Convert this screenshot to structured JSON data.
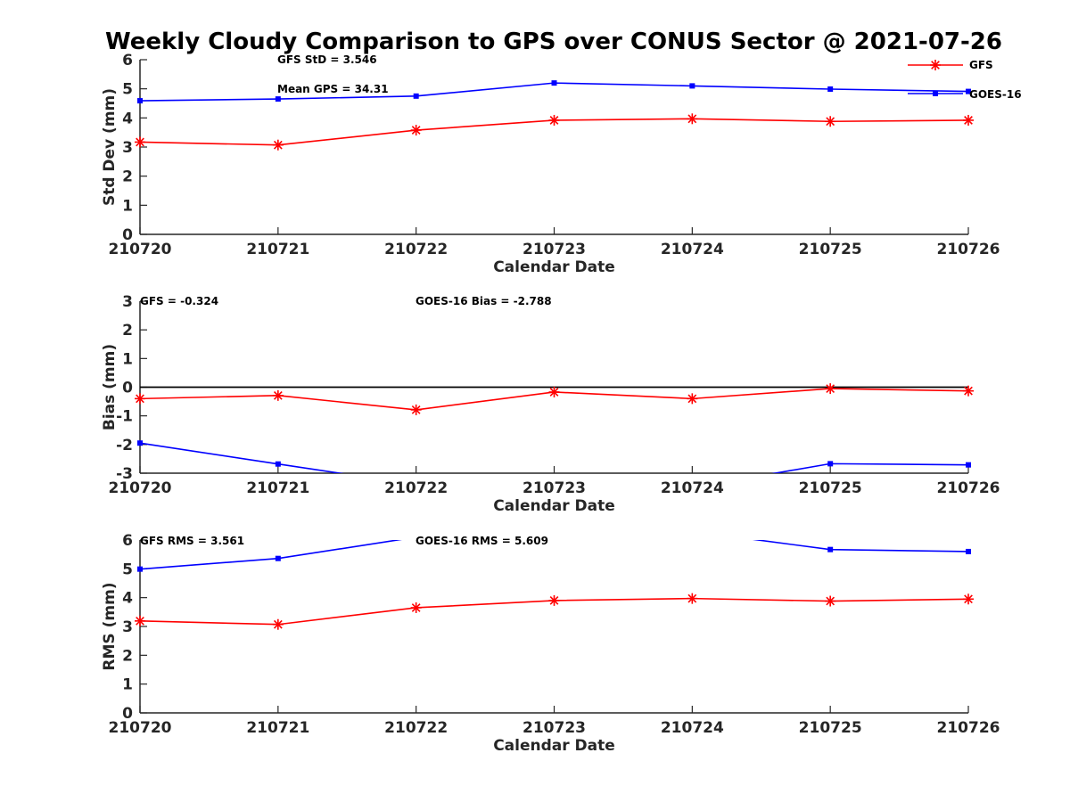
{
  "chart_data": {
    "title": "Weekly Cloudy Comparison to GPS over CONUS Sector @ 2021-07-26",
    "legend": {
      "placement": "top-right",
      "entries": [
        {
          "name": "GFS",
          "color": "#ff0000",
          "marker": "asterisk"
        },
        {
          "name": "GOES-16",
          "color": "#0000ff",
          "marker": "square"
        }
      ]
    },
    "panels": [
      {
        "type": "line",
        "xlabel": "Calendar Date",
        "ylabel": "Std Dev (mm)",
        "categories": [
          "210720",
          "210721",
          "210722",
          "210723",
          "210724",
          "210725",
          "210726"
        ],
        "ylim": [
          0,
          6
        ],
        "yticks": [
          "0",
          "1",
          "2",
          "3",
          "4",
          "5",
          "6"
        ],
        "zero_line": false,
        "annotations": [
          "GFS StD = 3.546",
          "Mean GPS = 34.31"
        ],
        "series": [
          {
            "name": "GFS",
            "color": "#ff0000",
            "values": [
              3.17,
              3.07,
              3.58,
              3.92,
              3.97,
              3.88,
              3.92
            ]
          },
          {
            "name": "GOES-16",
            "color": "#0000ff",
            "values": [
              4.59,
              4.65,
              4.75,
              5.2,
              5.1,
              4.99,
              4.91
            ]
          }
        ]
      },
      {
        "type": "line",
        "xlabel": "Calendar Date",
        "ylabel": "Bias (mm)",
        "categories": [
          "210720",
          "210721",
          "210722",
          "210723",
          "210724",
          "210725",
          "210726"
        ],
        "ylim": [
          -3,
          3
        ],
        "yticks": [
          "-3",
          "-2",
          "-1",
          "0",
          "1",
          "2",
          "3"
        ],
        "zero_line": true,
        "annotations": [
          "GFS = -0.324",
          "GOES-16 Bias  = -2.788"
        ],
        "series": [
          {
            "name": "GFS",
            "color": "#ff0000",
            "values": [
              -0.4,
              -0.29,
              -0.79,
              -0.17,
              -0.4,
              -0.05,
              -0.13
            ]
          },
          {
            "name": "GOES-16",
            "color": "#0000ff",
            "values": [
              -1.95,
              -2.68,
              -3.4,
              -3.6,
              -3.5,
              -2.67,
              -2.71
            ]
          }
        ]
      },
      {
        "type": "line",
        "xlabel": "Calendar Date",
        "ylabel": "RMS (mm)",
        "categories": [
          "210720",
          "210721",
          "210722",
          "210723",
          "210724",
          "210725",
          "210726"
        ],
        "ylim": [
          0,
          6
        ],
        "yticks": [
          "0",
          "1",
          "2",
          "3",
          "4",
          "5",
          "6"
        ],
        "zero_line": false,
        "annotations": [
          "GFS RMS = 3.561",
          "GOES-16 RMS = 5.609"
        ],
        "series": [
          {
            "name": "GFS",
            "color": "#ff0000",
            "values": [
              3.19,
              3.07,
              3.65,
              3.9,
              3.97,
              3.88,
              3.95
            ]
          },
          {
            "name": "GOES-16",
            "color": "#0000ff",
            "values": [
              4.99,
              5.36,
              6.1,
              6.4,
              6.3,
              5.67,
              5.6
            ]
          }
        ]
      }
    ]
  }
}
